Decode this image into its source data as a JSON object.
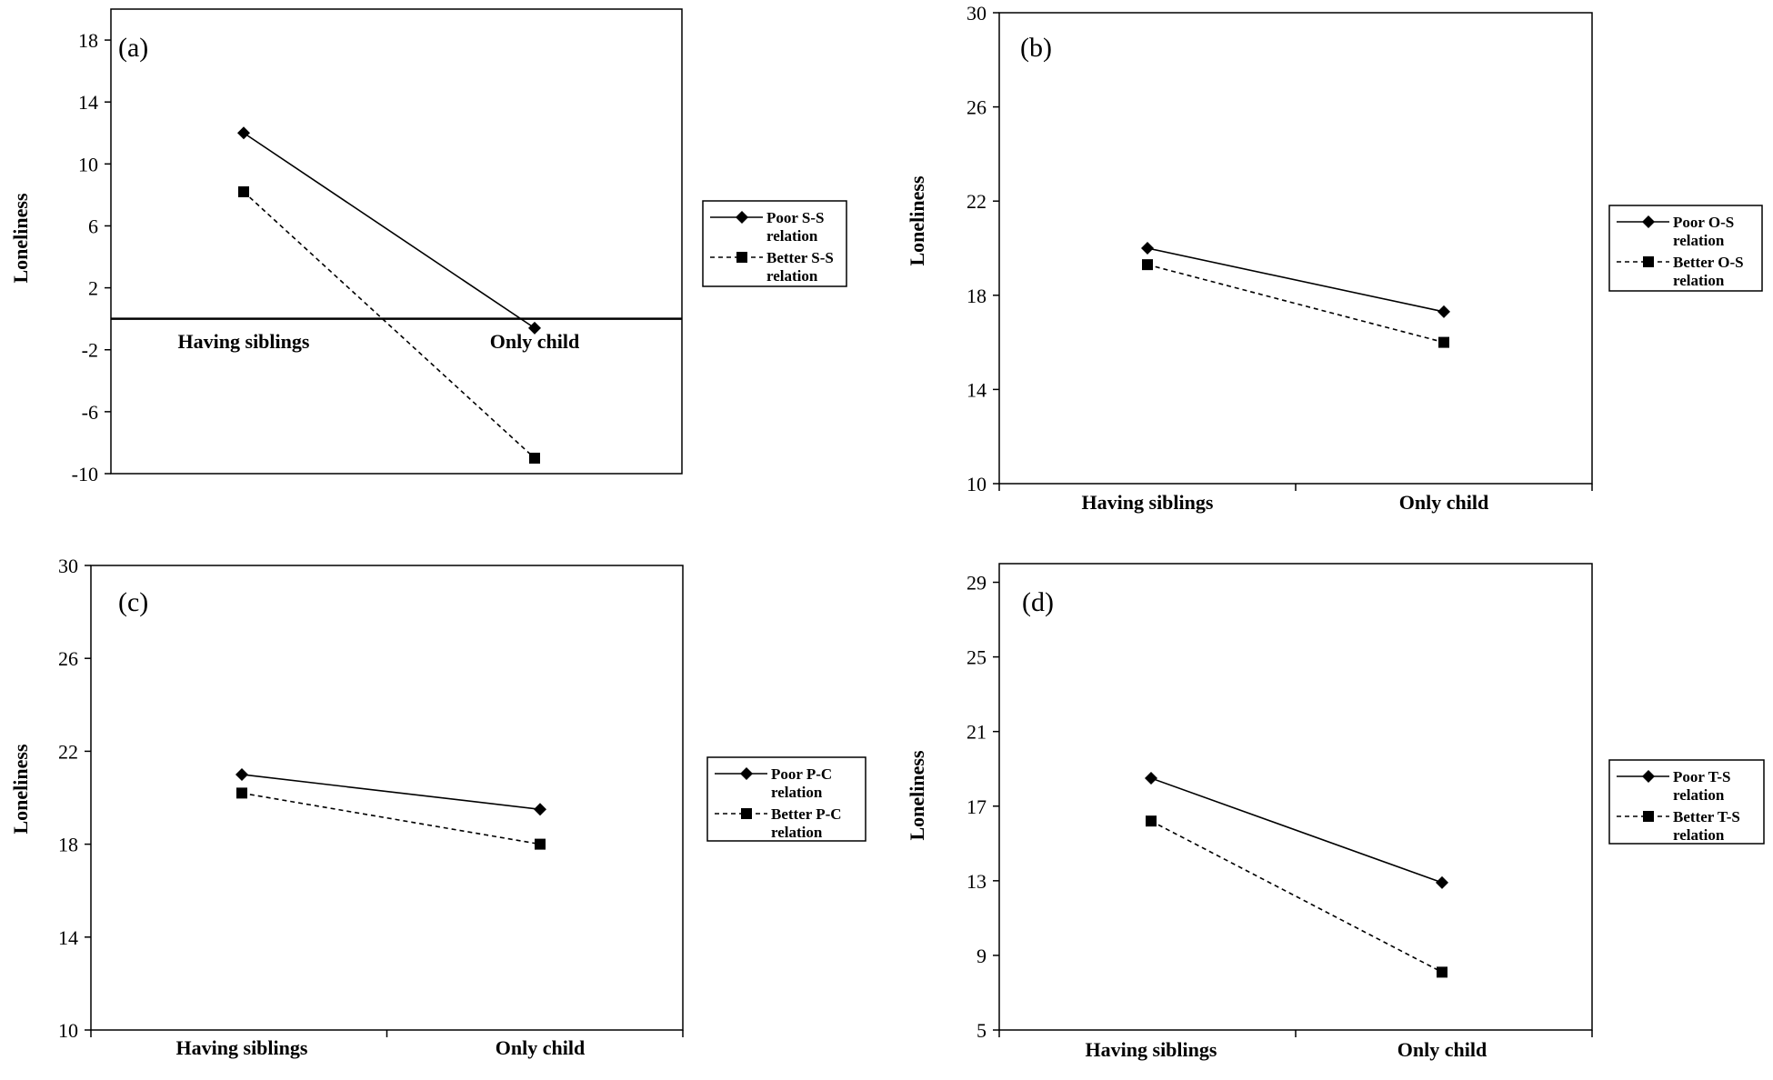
{
  "chart_data": [
    {
      "id": "a",
      "type": "line",
      "panel_label": "(a)",
      "ylabel": "Loneliness",
      "categories": [
        "Having siblings",
        "Only child"
      ],
      "ylim": [
        -10,
        20
      ],
      "yticks": [
        "18",
        "14",
        "10",
        "6",
        "2",
        "-2",
        "-6",
        "-10"
      ],
      "series": [
        {
          "name": "Poor S-S relation",
          "legend_lines": [
            "Poor S-S",
            "relation"
          ],
          "marker": "diamond",
          "dash": false,
          "values": [
            12,
            -0.6
          ]
        },
        {
          "name": "Better S-S relation",
          "legend_lines": [
            "Better S-S",
            "relation"
          ],
          "marker": "square",
          "dash": true,
          "values": [
            8.2,
            -9
          ]
        }
      ]
    },
    {
      "id": "b",
      "type": "line",
      "panel_label": "(b)",
      "ylabel": "Loneliness",
      "categories": [
        "Having siblings",
        "Only child"
      ],
      "ylim": [
        10,
        30
      ],
      "yticks": [
        "30",
        "26",
        "22",
        "18",
        "14",
        "10"
      ],
      "series": [
        {
          "name": "Poor O-S relation",
          "legend_lines": [
            "Poor O-S",
            "relation"
          ],
          "marker": "diamond",
          "dash": false,
          "values": [
            20,
            17.3
          ]
        },
        {
          "name": "Better O-S relation",
          "legend_lines": [
            "Better O-S",
            "relation"
          ],
          "marker": "square",
          "dash": true,
          "values": [
            19.3,
            16
          ]
        }
      ]
    },
    {
      "id": "c",
      "type": "line",
      "panel_label": "(c)",
      "ylabel": "Loneliness",
      "categories": [
        "Having siblings",
        "Only child"
      ],
      "ylim": [
        10,
        30
      ],
      "yticks": [
        "30",
        "26",
        "22",
        "18",
        "14",
        "10"
      ],
      "series": [
        {
          "name": "Poor P-C relation",
          "legend_lines": [
            "Poor P-C",
            "relation"
          ],
          "marker": "diamond",
          "dash": false,
          "values": [
            21,
            19.5
          ]
        },
        {
          "name": "Better P-C relation",
          "legend_lines": [
            "Better P-C",
            "relation"
          ],
          "marker": "square",
          "dash": true,
          "values": [
            20.2,
            18
          ]
        }
      ]
    },
    {
      "id": "d",
      "type": "line",
      "panel_label": "(d)",
      "ylabel": "Loneliness",
      "categories": [
        "Having siblings",
        "Only child"
      ],
      "ylim": [
        5,
        30
      ],
      "yticks": [
        "29",
        "25",
        "21",
        "17",
        "13",
        "9",
        "5"
      ],
      "series": [
        {
          "name": "Poor T-S relation",
          "legend_lines": [
            "Poor T-S",
            "relation"
          ],
          "marker": "diamond",
          "dash": false,
          "values": [
            18.5,
            12.9
          ]
        },
        {
          "name": "Better T-S relation",
          "legend_lines": [
            "Better T-S",
            "relation"
          ],
          "marker": "square",
          "dash": true,
          "values": [
            16.2,
            8.1
          ]
        }
      ]
    }
  ]
}
